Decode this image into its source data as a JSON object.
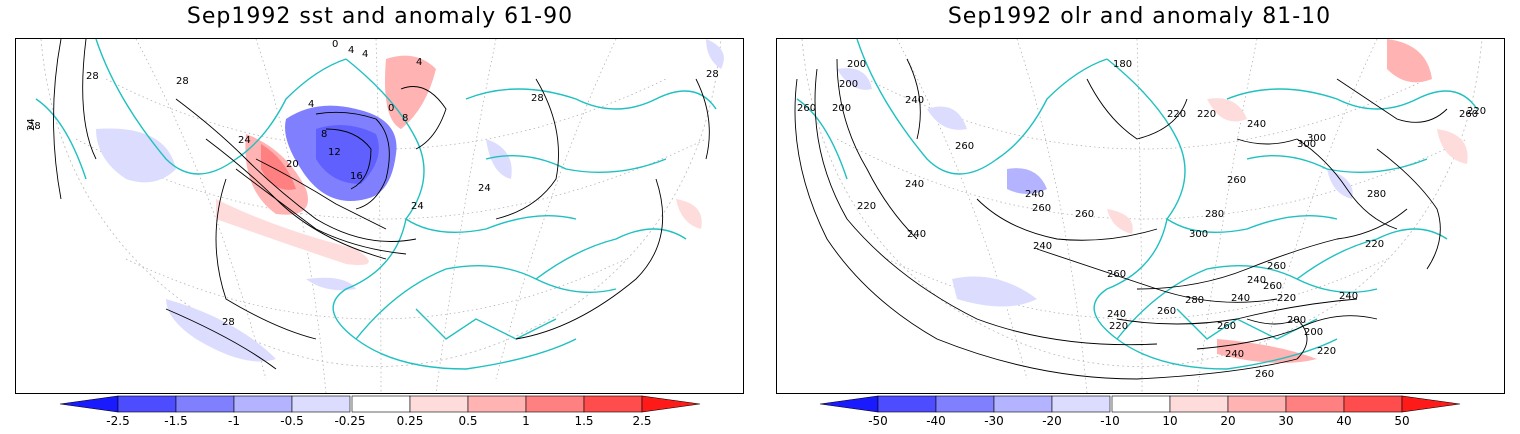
{
  "panels": [
    {
      "title": "Sep1992 sst and anomaly 61-90",
      "contour_labels": [
        "28",
        "28",
        "28",
        "24",
        "28",
        "28",
        "4",
        "8",
        "12",
        "16",
        "20",
        "24",
        "24",
        "24",
        "0",
        "4",
        "4",
        "4",
        "8",
        "0",
        "28"
      ],
      "colorbar": {
        "ticks": [
          "-2.5",
          "-1.5",
          "-1",
          "-0.5",
          "-0.25",
          "0.25",
          "0.5",
          "1",
          "1.5",
          "2.5"
        ],
        "colors": [
          "#1a1aff",
          "#4d4dff",
          "#8080ff",
          "#b3b3ff",
          "#dcdcff",
          "#ffffff",
          "#ffdcdc",
          "#ffb3b3",
          "#ff8080",
          "#ff4d4d",
          "#ff1a1a"
        ]
      }
    },
    {
      "title": "Sep1992 olr and anomaly 81-10",
      "contour_labels": [
        "260",
        "200",
        "200",
        "200",
        "180",
        "220",
        "220",
        "240",
        "300",
        "240",
        "260",
        "240",
        "240",
        "240",
        "220",
        "260",
        "240",
        "260",
        "280",
        "300",
        "260",
        "300",
        "260",
        "260",
        "240",
        "220",
        "240",
        "260",
        "280",
        "220",
        "200",
        "200",
        "220",
        "240",
        "260",
        "260",
        "220",
        "240",
        "260",
        "240",
        "280",
        "220",
        "260"
      ],
      "colorbar": {
        "ticks": [
          "-50",
          "-40",
          "-30",
          "-20",
          "-10",
          "10",
          "20",
          "30",
          "40",
          "50"
        ],
        "colors": [
          "#1a1aff",
          "#4d4dff",
          "#8080ff",
          "#b3b3ff",
          "#dcdcff",
          "#ffffff",
          "#ffdcdc",
          "#ffb3b3",
          "#ff8080",
          "#ff4d4d",
          "#ff1a1a"
        ]
      }
    }
  ]
}
